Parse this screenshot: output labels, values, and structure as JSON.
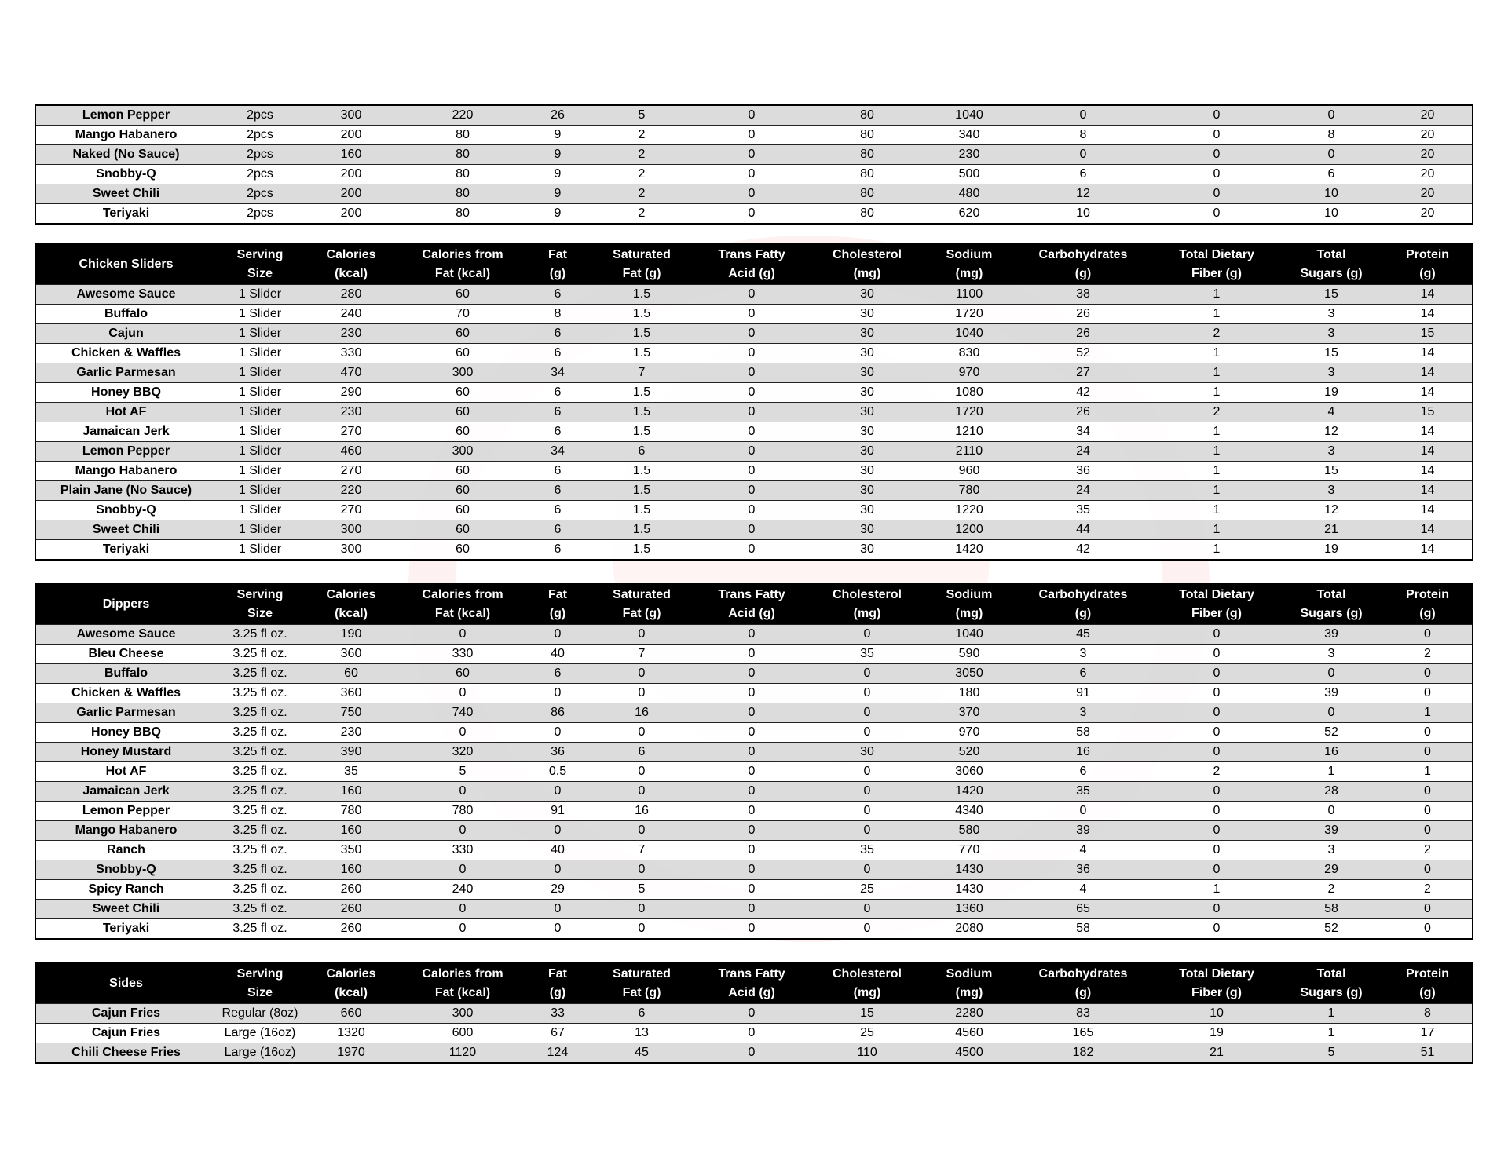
{
  "columns": [
    [
      "Serving",
      "Size"
    ],
    [
      "Calories",
      "(kcal)"
    ],
    [
      "Calories from",
      "Fat (kcal)"
    ],
    [
      "Fat",
      "(g)"
    ],
    [
      "Saturated",
      "Fat (g)"
    ],
    [
      "Trans Fatty",
      "Acid (g)"
    ],
    [
      "Cholesterol",
      "(mg)"
    ],
    [
      "Sodium",
      "(mg)"
    ],
    [
      "Carbohydrates",
      "(g)"
    ],
    [
      "Total Dietary",
      "Fiber (g)"
    ],
    [
      "Total",
      "Sugars (g)"
    ],
    [
      "Protein",
      "(g)"
    ]
  ],
  "tables": [
    {
      "title": "",
      "rows": [
        [
          "Lemon Pepper",
          "2pcs",
          "300",
          "220",
          "26",
          "5",
          "0",
          "80",
          "1040",
          "0",
          "0",
          "0",
          "20"
        ],
        [
          "Mango Habanero",
          "2pcs",
          "200",
          "80",
          "9",
          "2",
          "0",
          "80",
          "340",
          "8",
          "0",
          "8",
          "20"
        ],
        [
          "Naked (No Sauce)",
          "2pcs",
          "160",
          "80",
          "9",
          "2",
          "0",
          "80",
          "230",
          "0",
          "0",
          "0",
          "20"
        ],
        [
          "Snobby-Q",
          "2pcs",
          "200",
          "80",
          "9",
          "2",
          "0",
          "80",
          "500",
          "6",
          "0",
          "6",
          "20"
        ],
        [
          "Sweet Chili",
          "2pcs",
          "200",
          "80",
          "9",
          "2",
          "0",
          "80",
          "480",
          "12",
          "0",
          "10",
          "20"
        ],
        [
          "Teriyaki",
          "2pcs",
          "200",
          "80",
          "9",
          "2",
          "0",
          "80",
          "620",
          "10",
          "0",
          "10",
          "20"
        ]
      ]
    },
    {
      "title": "Chicken Sliders",
      "rows": [
        [
          "Awesome Sauce",
          "1 Slider",
          "280",
          "60",
          "6",
          "1.5",
          "0",
          "30",
          "1100",
          "38",
          "1",
          "15",
          "14"
        ],
        [
          "Buffalo",
          "1 Slider",
          "240",
          "70",
          "8",
          "1.5",
          "0",
          "30",
          "1720",
          "26",
          "1",
          "3",
          "14"
        ],
        [
          "Cajun",
          "1 Slider",
          "230",
          "60",
          "6",
          "1.5",
          "0",
          "30",
          "1040",
          "26",
          "2",
          "3",
          "15"
        ],
        [
          "Chicken & Waffles",
          "1 Slider",
          "330",
          "60",
          "6",
          "1.5",
          "0",
          "30",
          "830",
          "52",
          "1",
          "15",
          "14"
        ],
        [
          "Garlic Parmesan",
          "1 Slider",
          "470",
          "300",
          "34",
          "7",
          "0",
          "30",
          "970",
          "27",
          "1",
          "3",
          "14"
        ],
        [
          "Honey BBQ",
          "1 Slider",
          "290",
          "60",
          "6",
          "1.5",
          "0",
          "30",
          "1080",
          "42",
          "1",
          "19",
          "14"
        ],
        [
          "Hot AF",
          "1 Slider",
          "230",
          "60",
          "6",
          "1.5",
          "0",
          "30",
          "1720",
          "26",
          "2",
          "4",
          "15"
        ],
        [
          "Jamaican Jerk",
          "1 Slider",
          "270",
          "60",
          "6",
          "1.5",
          "0",
          "30",
          "1210",
          "34",
          "1",
          "12",
          "14"
        ],
        [
          "Lemon Pepper",
          "1 Slider",
          "460",
          "300",
          "34",
          "6",
          "0",
          "30",
          "2110",
          "24",
          "1",
          "3",
          "14"
        ],
        [
          "Mango Habanero",
          "1 Slider",
          "270",
          "60",
          "6",
          "1.5",
          "0",
          "30",
          "960",
          "36",
          "1",
          "15",
          "14"
        ],
        [
          "Plain Jane (No Sauce)",
          "1 Slider",
          "220",
          "60",
          "6",
          "1.5",
          "0",
          "30",
          "780",
          "24",
          "1",
          "3",
          "14"
        ],
        [
          "Snobby-Q",
          "1 Slider",
          "270",
          "60",
          "6",
          "1.5",
          "0",
          "30",
          "1220",
          "35",
          "1",
          "12",
          "14"
        ],
        [
          "Sweet Chili",
          "1 Slider",
          "300",
          "60",
          "6",
          "1.5",
          "0",
          "30",
          "1200",
          "44",
          "1",
          "21",
          "14"
        ],
        [
          "Teriyaki",
          "1 Slider",
          "300",
          "60",
          "6",
          "1.5",
          "0",
          "30",
          "1420",
          "42",
          "1",
          "19",
          "14"
        ]
      ]
    },
    {
      "title": "Dippers",
      "rows": [
        [
          "Awesome Sauce",
          "3.25 fl oz.",
          "190",
          "0",
          "0",
          "0",
          "0",
          "0",
          "1040",
          "45",
          "0",
          "39",
          "0"
        ],
        [
          "Bleu Cheese",
          "3.25 fl oz.",
          "360",
          "330",
          "40",
          "7",
          "0",
          "35",
          "590",
          "3",
          "0",
          "3",
          "2"
        ],
        [
          "Buffalo",
          "3.25 fl oz.",
          "60",
          "60",
          "6",
          "0",
          "0",
          "0",
          "3050",
          "6",
          "0",
          "0",
          "0"
        ],
        [
          "Chicken & Waffles",
          "3.25 fl oz.",
          "360",
          "0",
          "0",
          "0",
          "0",
          "0",
          "180",
          "91",
          "0",
          "39",
          "0"
        ],
        [
          "Garlic Parmesan",
          "3.25 fl oz.",
          "750",
          "740",
          "86",
          "16",
          "0",
          "0",
          "370",
          "3",
          "0",
          "0",
          "1"
        ],
        [
          "Honey BBQ",
          "3.25 fl oz.",
          "230",
          "0",
          "0",
          "0",
          "0",
          "0",
          "970",
          "58",
          "0",
          "52",
          "0"
        ],
        [
          "Honey Mustard",
          "3.25 fl oz.",
          "390",
          "320",
          "36",
          "6",
          "0",
          "30",
          "520",
          "16",
          "0",
          "16",
          "0"
        ],
        [
          "Hot AF",
          "3.25 fl oz.",
          "35",
          "5",
          "0.5",
          "0",
          "0",
          "0",
          "3060",
          "6",
          "2",
          "1",
          "1"
        ],
        [
          "Jamaican Jerk",
          "3.25 fl oz.",
          "160",
          "0",
          "0",
          "0",
          "0",
          "0",
          "1420",
          "35",
          "0",
          "28",
          "0"
        ],
        [
          "Lemon Pepper",
          "3.25 fl oz.",
          "780",
          "780",
          "91",
          "16",
          "0",
          "0",
          "4340",
          "0",
          "0",
          "0",
          "0"
        ],
        [
          "Mango Habanero",
          "3.25 fl oz.",
          "160",
          "0",
          "0",
          "0",
          "0",
          "0",
          "580",
          "39",
          "0",
          "39",
          "0"
        ],
        [
          "Ranch",
          "3.25 fl oz.",
          "350",
          "330",
          "40",
          "7",
          "0",
          "35",
          "770",
          "4",
          "0",
          "3",
          "2"
        ],
        [
          "Snobby-Q",
          "3.25 fl oz.",
          "160",
          "0",
          "0",
          "0",
          "0",
          "0",
          "1430",
          "36",
          "0",
          "29",
          "0"
        ],
        [
          "Spicy Ranch",
          "3.25 fl oz.",
          "260",
          "240",
          "29",
          "5",
          "0",
          "25",
          "1430",
          "4",
          "1",
          "2",
          "2"
        ],
        [
          "Sweet Chili",
          "3.25 fl oz.",
          "260",
          "0",
          "0",
          "0",
          "0",
          "0",
          "1360",
          "65",
          "0",
          "58",
          "0"
        ],
        [
          "Teriyaki",
          "3.25 fl oz.",
          "260",
          "0",
          "0",
          "0",
          "0",
          "0",
          "2080",
          "58",
          "0",
          "52",
          "0"
        ]
      ]
    },
    {
      "title": "Sides",
      "rows": [
        [
          "Cajun Fries",
          "Regular (8oz)",
          "660",
          "300",
          "33",
          "6",
          "0",
          "15",
          "2280",
          "83",
          "10",
          "1",
          "8"
        ],
        [
          "Cajun Fries",
          "Large (16oz)",
          "1320",
          "600",
          "67",
          "13",
          "0",
          "25",
          "4560",
          "165",
          "19",
          "1",
          "17"
        ],
        [
          "Chili Cheese Fries",
          "Large (16oz)",
          "1970",
          "1120",
          "124",
          "45",
          "0",
          "110",
          "4500",
          "182",
          "21",
          "5",
          "51"
        ]
      ]
    }
  ],
  "colors": {
    "header_bg": "#000000",
    "header_text": "#ffffff",
    "row_alt": "#d9d9d9",
    "watermark": "#e63c3c"
  }
}
